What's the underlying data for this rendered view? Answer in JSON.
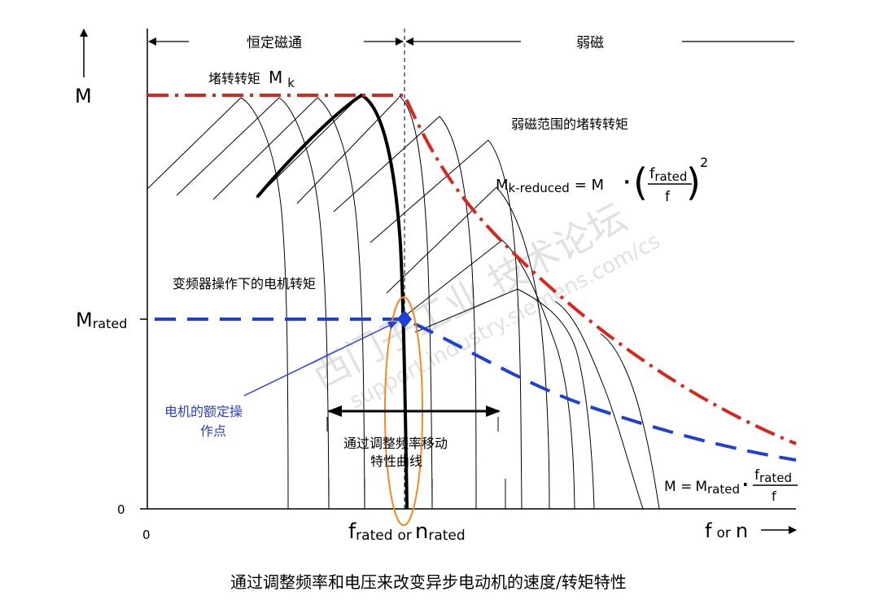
{
  "diagram": {
    "axes": {
      "y_label": "M",
      "x_label_main": "f",
      "x_label_or": "or",
      "x_label_n": "n",
      "origin_x": "0",
      "origin_y": "0"
    },
    "regions": {
      "constant_flux": "恒定磁通",
      "field_weakening": "弱磁"
    },
    "labels": {
      "stall_torque_text": "堵转转矩",
      "stall_torque_symbol": "M",
      "stall_torque_sub": "k",
      "weak_field_stall": "弱磁范围的堵转转矩",
      "vfd_torque": "变频器操作下的电机转矩",
      "rated_point_line1": "电机的额定操",
      "rated_point_line2": "作点",
      "shift_line1": "通过调整频率移动",
      "shift_line2": "特性曲线",
      "m_rated_main": "M",
      "m_rated_sub": "rated",
      "f_rated_main": "f",
      "f_rated_sub": "rated",
      "or_text": "or",
      "n_rated_main": "n",
      "n_rated_sub": "rated"
    },
    "formula1": {
      "lhs": "M",
      "lhs_sub": "k-reduced",
      "eq": "= M",
      "dot": "·",
      "num_main": "f",
      "num_sub": "rated",
      "den": "f",
      "exp": "2"
    },
    "formula2": {
      "lhs": "M =",
      "m": "M",
      "m_sub": "rated",
      "dot": "·",
      "num_main": "f",
      "num_sub": "rated",
      "den": "f"
    },
    "caption": "通过调整频率和电压来改变异步电动机的速度/转矩特性",
    "watermark": {
      "line1": "西门子工业 技术论坛",
      "line2": "support.industry.siemens.com/cs"
    },
    "colors": {
      "stall_curve": "#d9261c",
      "rated_curve": "#1f3fd6",
      "highlight": "#f08a24",
      "annotation_blue": "#2b3fd0"
    }
  }
}
